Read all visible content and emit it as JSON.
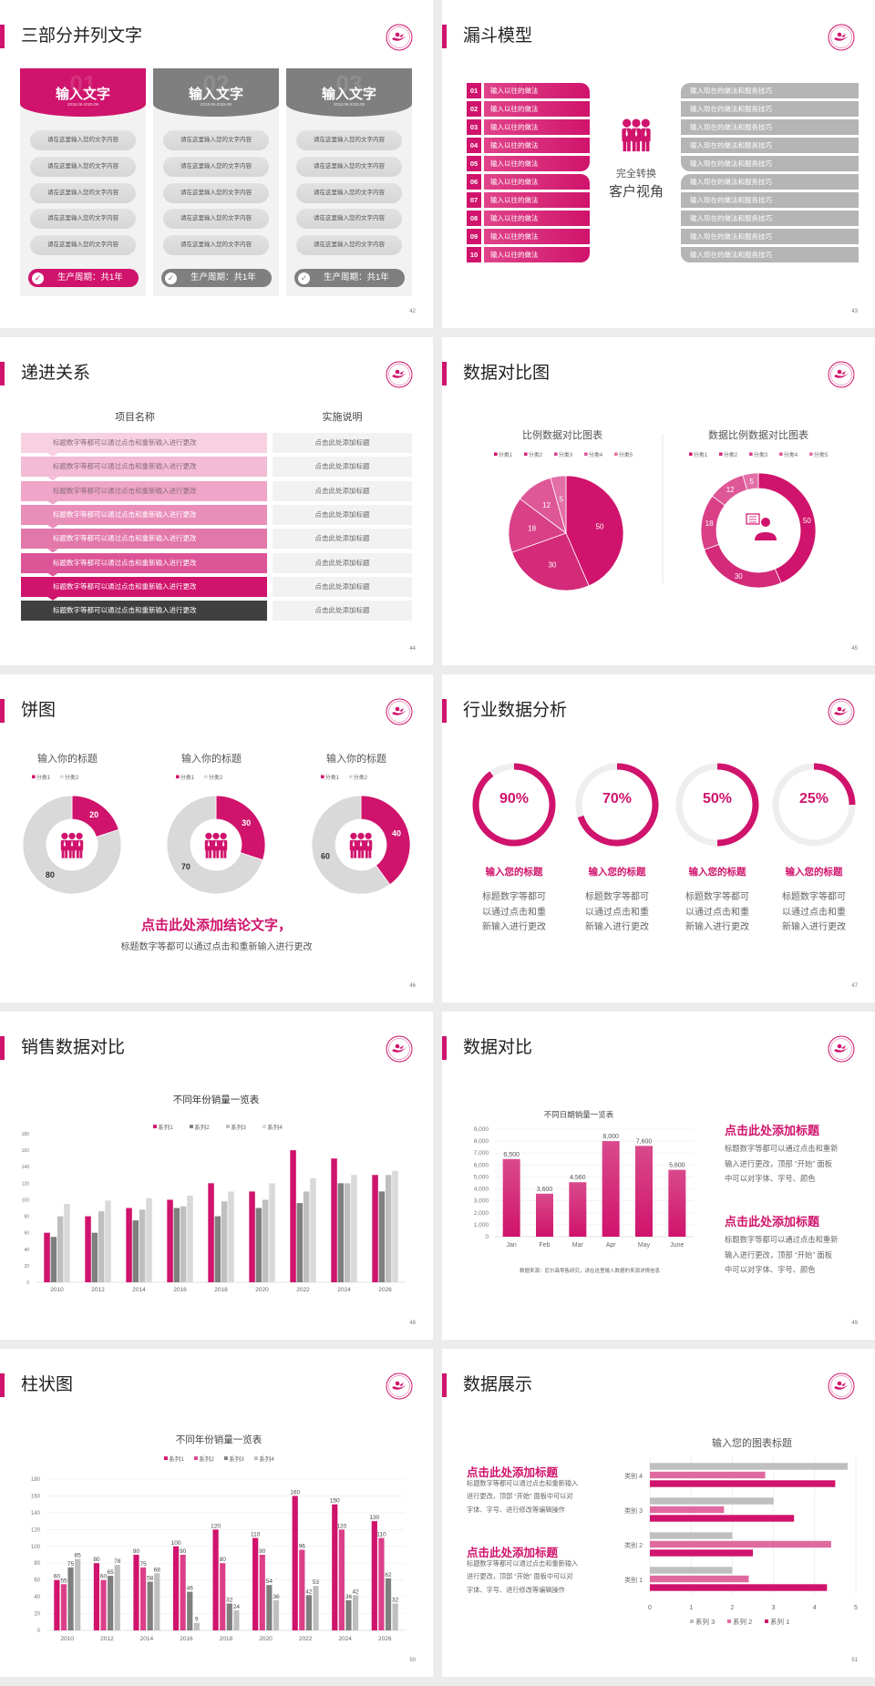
{
  "colors": {
    "accent": "#d0136c",
    "accent_light": "#dc3f8a",
    "gray_dark": "#7f7f7f",
    "gray": "#bfbfbf",
    "gray_light": "#d9d9d9",
    "panel": "#f2f2f2"
  },
  "slides": [
    {
      "title": "三部分并列文字",
      "page": "42",
      "cards": [
        {
          "number": "01",
          "title": "输入文字",
          "date": "2018.08-2029.08",
          "highlight": true,
          "items": [
            "请在这里输入您的文字内容",
            "请在这里输入您的文字内容",
            "请在这里输入您的文字内容",
            "请在这里输入您的文字内容",
            "请在这里输入您的文字内容"
          ],
          "footer": "生产周期：共1年"
        },
        {
          "number": "02",
          "title": "输入文字",
          "date": "2018.08-2029.08",
          "highlight": false,
          "items": [
            "请在这里输入您的文字内容",
            "请在这里输入您的文字内容",
            "请在这里输入您的文字内容",
            "请在这里输入您的文字内容",
            "请在这里输入您的文字内容"
          ],
          "footer": "生产周期：共1年"
        },
        {
          "number": "03",
          "title": "输入文字",
          "date": "2018.08-2029.08",
          "highlight": false,
          "items": [
            "请在这里输入您的文字内容",
            "请在这里输入您的文字内容",
            "请在这里输入您的文字内容",
            "请在这里输入您的文字内容",
            "请在这里输入您的文字内容"
          ],
          "footer": "生产周期：共1年"
        }
      ]
    },
    {
      "title": "漏斗模型",
      "page": "43",
      "left_items": [
        {
          "num": "01",
          "label": "输入以往的做法"
        },
        {
          "num": "02",
          "label": "输入以往的做法"
        },
        {
          "num": "03",
          "label": "输入以往的做法"
        },
        {
          "num": "04",
          "label": "输入以往的做法"
        },
        {
          "num": "05",
          "label": "输入以往的做法"
        },
        {
          "num": "06",
          "label": "输入以往的做法"
        },
        {
          "num": "07",
          "label": "输入以往的做法"
        },
        {
          "num": "08",
          "label": "输入以往的做法"
        },
        {
          "num": "09",
          "label": "输入以往的做法"
        },
        {
          "num": "10",
          "label": "输入以往的做法"
        }
      ],
      "right_items": [
        "输入现在的做法和服务技巧",
        "输入现在的做法和服务技巧",
        "输入现在的做法和服务技巧",
        "输入现在的做法和服务技巧",
        "输入现在的做法和服务技巧",
        "输入现在的做法和服务技巧",
        "输入现在的做法和服务技巧",
        "输入现在的做法和服务技巧",
        "输入现在的做法和服务技巧",
        "输入现在的做法和服务技巧"
      ],
      "center_line1": "完全转换",
      "center_line2": "客户视角"
    },
    {
      "title": "递进关系",
      "page": "44",
      "col1_header": "项目名称",
      "col2_header": "实施说明",
      "rows": [
        {
          "name": "标题数字等都可以通过点击和重新输入进行更改",
          "note": "点击此处添加标题"
        },
        {
          "name": "标题数字等都可以通过点击和重新输入进行更改",
          "note": "点击此处添加标题"
        },
        {
          "name": "标题数字等都可以通过点击和重新输入进行更改",
          "note": "点击此处添加标题"
        },
        {
          "name": "标题数字等都可以通过点击和重新输入进行更改",
          "note": "点击此处添加标题"
        },
        {
          "name": "标题数字等都可以通过点击和重新输入进行更改",
          "note": "点击此处添加标题"
        },
        {
          "name": "标题数字等都可以通过点击和重新输入进行更改",
          "note": "点击此处添加标题"
        },
        {
          "name": "标题数字等都可以通过点击和重新输入进行更改",
          "note": "点击此处添加标题"
        },
        {
          "name": "标题数字等都可以通过点击和重新输入进行更改",
          "note": "点击此处添加标题"
        }
      ]
    },
    {
      "title": "数据对比图",
      "page": "45"
    },
    {
      "title": "饼图",
      "page": "46",
      "conclusion": "点击此处添加结论文字，",
      "conclusion_sub": "标题数字等都可以通过点击和重新输入进行更改"
    },
    {
      "title": "行业数据分析",
      "page": "47",
      "rings": [
        {
          "value": 90,
          "label": "90%",
          "title": "输入您的标题",
          "desc": [
            "标题数字等都可",
            "以通过点击和重",
            "新输入进行更改"
          ]
        },
        {
          "value": 70,
          "label": "70%",
          "title": "输入您的标题",
          "desc": [
            "标题数字等都可",
            "以通过点击和重",
            "新输入进行更改"
          ]
        },
        {
          "value": 50,
          "label": "50%",
          "title": "输入您的标题",
          "desc": [
            "标题数字等都可",
            "以通过点击和重",
            "新输入进行更改"
          ]
        },
        {
          "value": 25,
          "label": "25%",
          "title": "输入您的标题",
          "desc": [
            "标题数字等都可",
            "以通过点击和重",
            "新输入进行更改"
          ]
        }
      ]
    },
    {
      "title": "销售数据对比",
      "page": "48"
    },
    {
      "title": "数据对比",
      "page": "49",
      "blocks": [
        {
          "title": "点击此处添加标题",
          "lines": [
            "标题数字等都可以通过点击和重新",
            "输入进行更改，顶部 “开始” 面板",
            "中可以对字体、字号、颜色"
          ]
        },
        {
          "title": "点击此处添加标题",
          "lines": [
            "标题数字等都可以通过点击和重新",
            "输入进行更改，顶部 “开始” 面板",
            "中可以对字体、字号、颜色"
          ]
        }
      ]
    },
    {
      "title": "柱状图",
      "page": "50"
    },
    {
      "title": "数据展示",
      "page": "51",
      "blocks": [
        {
          "title": "点击此处添加标题",
          "lines": [
            "标题数字等都可以通过点击和重新输入",
            "进行更改，顶部 “开始” 面板中可以对",
            "字体、字号、进行修改等编辑操作"
          ]
        },
        {
          "title": "点击此处添加标题",
          "lines": [
            "标题数字等都可以通过点击和重新输入",
            "进行更改，顶部 “开始” 面板中可以对",
            "字体、字号、进行修改等编辑操作"
          ]
        }
      ]
    }
  ],
  "chart_data": [
    {
      "type": "pie",
      "title": "比例数据对比图表",
      "categories": [
        "分类1",
        "分类2",
        "分类3",
        "分类4",
        "分类5"
      ],
      "values": [
        50,
        30,
        18,
        12,
        5
      ],
      "legend": "top"
    },
    {
      "type": "pie",
      "donut": true,
      "title": "数据比例数据对比图表",
      "categories": [
        "分类1",
        "分类2",
        "分类3",
        "分类4",
        "分类5"
      ],
      "values": [
        50,
        30,
        18,
        12,
        5
      ],
      "legend": "top"
    },
    {
      "type": "pie",
      "donut": true,
      "title": "输入你的标题",
      "categories": [
        "分类1",
        "分类2"
      ],
      "values": [
        20,
        80
      ],
      "legend": "top"
    },
    {
      "type": "pie",
      "donut": true,
      "title": "输入你的标题",
      "categories": [
        "分类1",
        "分类2"
      ],
      "values": [
        30,
        70
      ],
      "legend": "top"
    },
    {
      "type": "pie",
      "donut": true,
      "title": "输入你的标题",
      "categories": [
        "分类1",
        "分类2"
      ],
      "values": [
        40,
        60
      ],
      "legend": "top"
    },
    {
      "type": "bar",
      "title": "不同年份销量一览表",
      "categories": [
        "2010",
        "2012",
        "2014",
        "2016",
        "2018",
        "2020",
        "2022",
        "2024",
        "2026"
      ],
      "series": [
        {
          "name": "系列1",
          "values": [
            60,
            80,
            90,
            100,
            120,
            110,
            160,
            150,
            130
          ]
        },
        {
          "name": "系列2",
          "values": [
            55,
            60,
            75,
            90,
            80,
            90,
            96,
            120,
            110
          ]
        },
        {
          "name": "系列3",
          "values": [
            80,
            86,
            88,
            92,
            98,
            100,
            110,
            120,
            130
          ]
        },
        {
          "name": "系列4",
          "values": [
            95,
            99,
            102,
            105,
            110,
            120,
            126,
            130,
            135
          ]
        }
      ],
      "ylim": [
        0,
        180
      ],
      "yticks": [
        "0",
        "20",
        "40",
        "60",
        "80",
        "100",
        "120",
        "140",
        "160",
        "180"
      ],
      "legend": "top",
      "grid": false
    },
    {
      "type": "bar",
      "title": "不同日期销量一览表",
      "categories": [
        "Jan",
        "Feb",
        "Mar",
        "Apr",
        "May",
        "June"
      ],
      "values": [
        6500,
        3600,
        4560,
        8000,
        7600,
        5600
      ],
      "data_labels": [
        "6,500",
        "3,600",
        "4,560",
        "8,000",
        "7,600",
        "5,600"
      ],
      "ylim": [
        0,
        9000
      ],
      "yticks": [
        "0",
        "1,000",
        "2,000",
        "3,000",
        "4,000",
        "5,000",
        "6,000",
        "7,000",
        "8,000",
        "9,000"
      ],
      "grid": true,
      "note": "数据来源：尼尔森零售研究，请在这里输入数据的来源详情信息"
    },
    {
      "type": "bar",
      "title": "不同年份销量一览表",
      "categories": [
        "2010",
        "2012",
        "2014",
        "2016",
        "2018",
        "2020",
        "2022",
        "2024",
        "2026"
      ],
      "series": [
        {
          "name": "系列1",
          "values": [
            60,
            80,
            90,
            100,
            120,
            110,
            160,
            150,
            130
          ]
        },
        {
          "name": "系列2",
          "values": [
            55,
            60,
            75,
            90,
            80,
            90,
            96,
            120,
            110
          ]
        },
        {
          "name": "系列3",
          "values": [
            75,
            65,
            58,
            46,
            32,
            54,
            42,
            36,
            62
          ]
        },
        {
          "name": "系列4",
          "values": [
            85,
            78,
            68,
            9,
            24,
            36,
            53,
            42,
            32
          ]
        }
      ],
      "ylim": [
        0,
        180
      ],
      "yticks": [
        "0",
        "20",
        "40",
        "60",
        "80",
        "100",
        "120",
        "140",
        "160",
        "180"
      ],
      "legend": "top",
      "grid": true,
      "data_labels": true
    },
    {
      "type": "bar",
      "orientation": "horizontal",
      "title": "输入您的图表标题",
      "categories": [
        "类别 1",
        "类别 2",
        "类别 3",
        "类别 4"
      ],
      "series": [
        {
          "name": "系列 1",
          "values": [
            4.3,
            2.5,
            3.5,
            4.5
          ]
        },
        {
          "name": "系列 2",
          "values": [
            2.4,
            4.4,
            1.8,
            2.8
          ]
        },
        {
          "name": "系列 3",
          "values": [
            2,
            2,
            3,
            4.8
          ]
        }
      ],
      "xlim": [
        0,
        5
      ],
      "xticks": [
        "0",
        "1",
        "2",
        "3",
        "4",
        "5"
      ],
      "legend": "bottom",
      "grid": true
    }
  ]
}
